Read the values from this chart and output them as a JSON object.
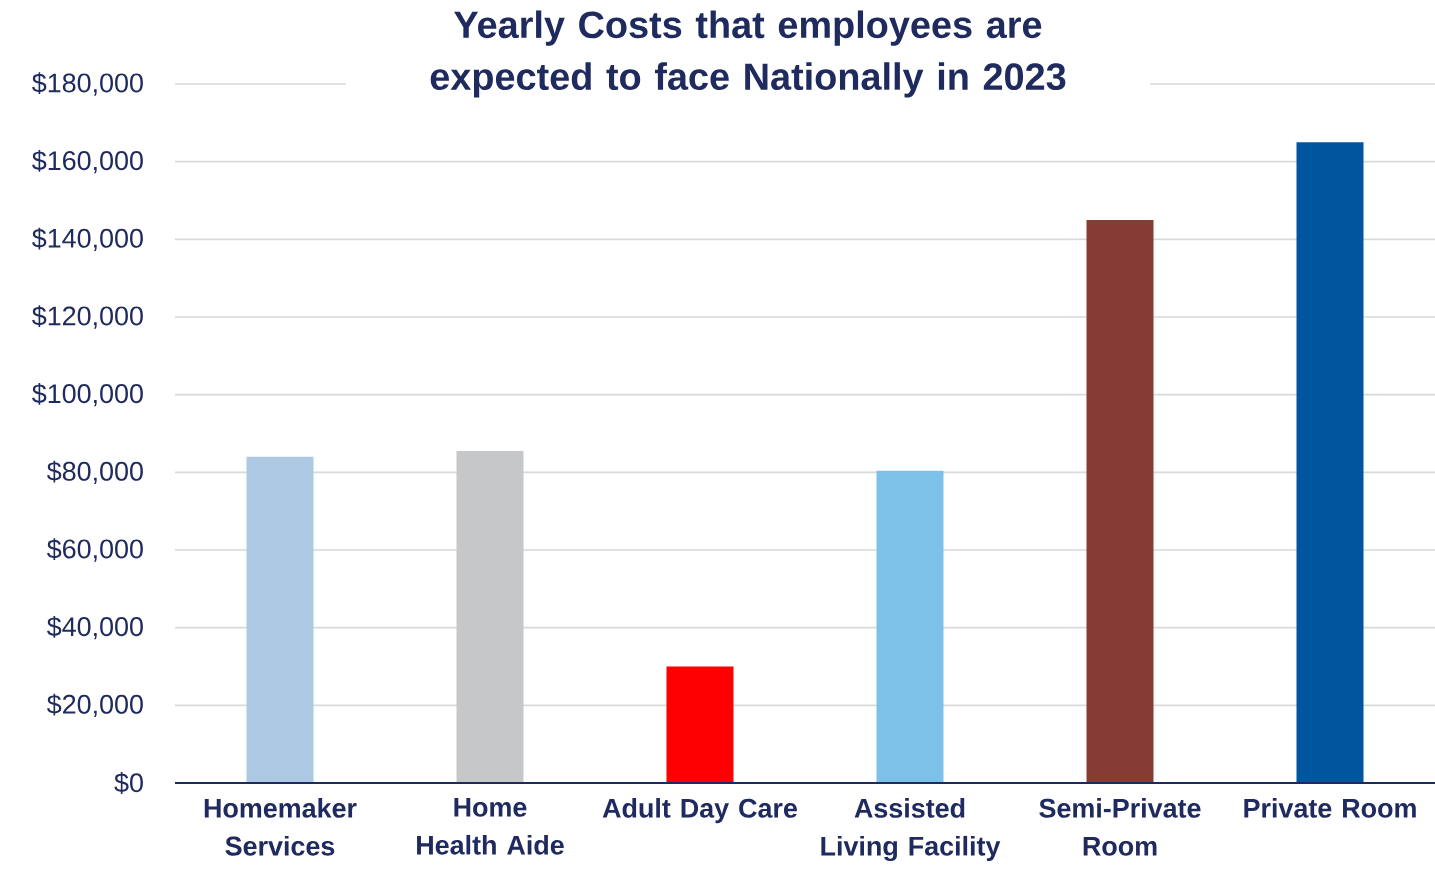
{
  "chart_data": {
    "type": "bar",
    "title": "Yearly Costs that employees are expected to face Nationally in 2023",
    "categories": [
      "Homemaker Services",
      "Home Health Aide",
      "Adult Day Care",
      "Assisted Living Facility",
      "Semi-Private Room",
      "Private Room"
    ],
    "values": [
      84000,
      85500,
      30000,
      80400,
      145000,
      165000
    ],
    "colors": [
      "#adc8e3",
      "#c6c7c9",
      "#ff0000",
      "#7dc1e9",
      "#843c35",
      "#00559f"
    ],
    "ylim": [
      0,
      180000
    ],
    "yticks": [
      {
        "value": 0,
        "label": "$0"
      },
      {
        "value": 20000,
        "label": "$20,000"
      },
      {
        "value": 40000,
        "label": "$40,000"
      },
      {
        "value": 60000,
        "label": "$60,000"
      },
      {
        "value": 80000,
        "label": "$80,000"
      },
      {
        "value": 100000,
        "label": "$100,000"
      },
      {
        "value": 120000,
        "label": "$120,000"
      },
      {
        "value": 140000,
        "label": "$140,000"
      },
      {
        "value": 160000,
        "label": "$160,000"
      },
      {
        "value": 180000,
        "label": "$180,000"
      }
    ],
    "grid": "y"
  }
}
